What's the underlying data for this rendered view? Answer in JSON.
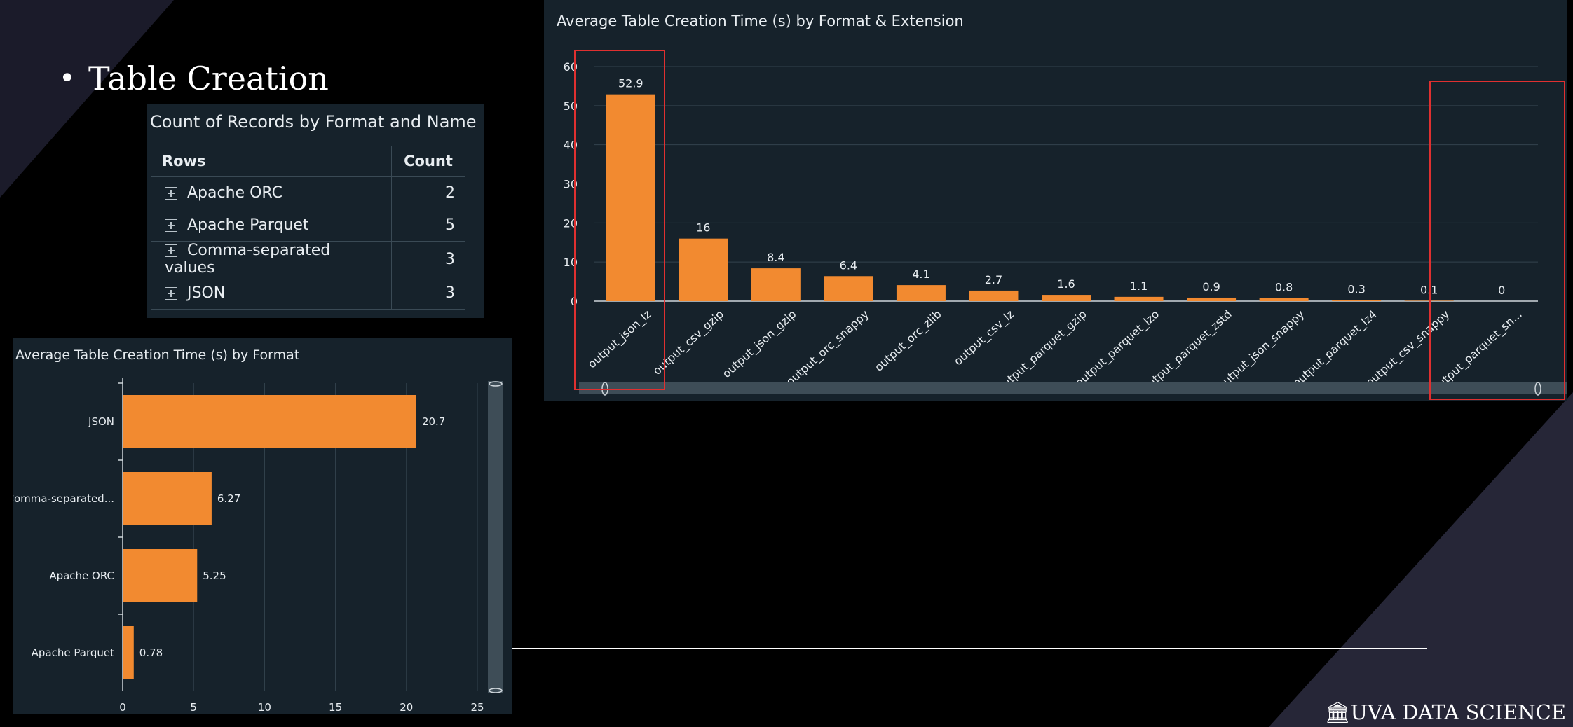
{
  "slide": {
    "bullet": "Table Creation",
    "logo": "UVA DATA SCIENCE"
  },
  "pivot_table": {
    "title": "Count of Records by Format and Name",
    "headers": [
      "Rows",
      "Count"
    ],
    "rows": [
      {
        "name": "Apache ORC",
        "count": "2"
      },
      {
        "name": "Apache Parquet",
        "count": "5"
      },
      {
        "name": "Comma-separated values",
        "count": "3"
      },
      {
        "name": "JSON",
        "count": "3"
      }
    ]
  },
  "colors": {
    "bar": "#f28a30",
    "panel": "#16222b",
    "highlight": "#e03030"
  },
  "chart_data": [
    {
      "type": "bar",
      "title": "Average Table Creation Time (s) by Format & Extension",
      "categories": [
        "output_json_lz",
        "output_csv_gzip",
        "output_json_gzip",
        "output_orc_snappy",
        "output_orc_zlib",
        "output_csv_lz",
        "output_parquet_gzip",
        "output_parquet_lzo",
        "output_parquet_zstd",
        "output_json_snappy",
        "output_parquet_lz4",
        "output_csv_snappy",
        "output_parquet_sn..."
      ],
      "values": [
        52.9,
        16,
        8.4,
        6.4,
        4.1,
        2.7,
        1.6,
        1.1,
        0.9,
        0.8,
        0.3,
        0.1,
        0
      ],
      "ylim": [
        0,
        60
      ],
      "yticks": [
        0,
        10,
        20,
        30,
        40,
        50,
        60
      ],
      "grid": true
    },
    {
      "type": "bar",
      "orientation": "horizontal",
      "title": "Average Table Creation Time (s) by Format",
      "categories": [
        "JSON",
        "Comma-separated...",
        "Apache ORC",
        "Apache Parquet"
      ],
      "values": [
        20.7,
        6.27,
        5.25,
        0.78
      ],
      "xlim": [
        0,
        25
      ],
      "xticks": [
        0,
        5,
        10,
        15,
        20,
        25
      ],
      "grid": true
    }
  ]
}
